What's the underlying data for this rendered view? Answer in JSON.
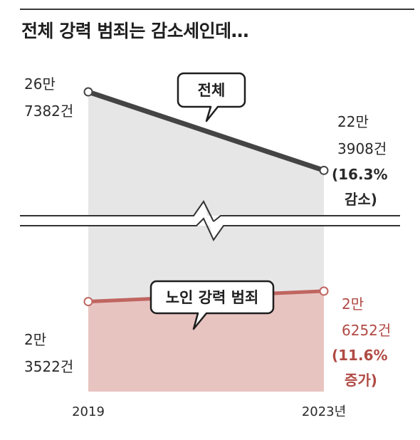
{
  "page": {
    "title": "전체 강력 범죄는 감소세인데…"
  },
  "colors": {
    "total_line": "#444444",
    "total_fill": "#e6e6e7",
    "elderly_line": "#c06560",
    "elderly_fill": "#e8c4c1",
    "elderly_text": "#b04a44",
    "text": "#2a2a2a"
  },
  "chart_data": {
    "type": "area",
    "x": [
      "2019",
      "2023"
    ],
    "x_tick_labels": [
      "2019",
      "2023년"
    ],
    "axis_break": true,
    "series": [
      {
        "name": "전체",
        "values": [
          267382,
          223908
        ],
        "start_label": [
          "26만",
          "7382건"
        ],
        "end_label": [
          "22만",
          "3908건"
        ],
        "change_label": [
          "(16.3%",
          "감소)"
        ]
      },
      {
        "name": "노인 강력 범죄",
        "values": [
          23522,
          26252
        ],
        "start_label": [
          "2만",
          "3522건"
        ],
        "end_label": [
          "2만",
          "6252건"
        ],
        "change_label": [
          "(11.6%",
          "증가)"
        ]
      }
    ]
  }
}
